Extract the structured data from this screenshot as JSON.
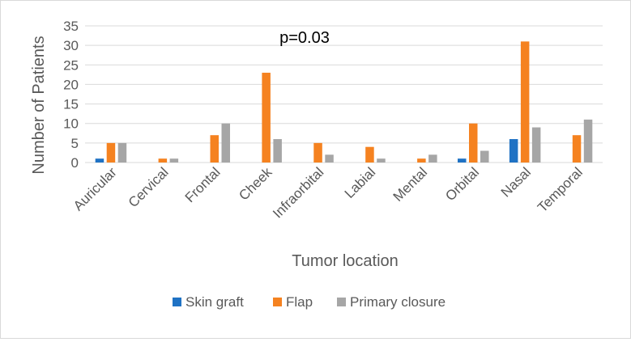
{
  "chart_data": {
    "type": "bar",
    "categories": [
      "Auricular",
      "Cervical",
      "Frontal",
      "Cheek",
      "Infraorbital",
      "Labial",
      "Mental",
      "Orbital",
      "Nasal",
      "Temporal"
    ],
    "series": [
      {
        "name": "Skin graft",
        "values": [
          1,
          0,
          0,
          0,
          0,
          0,
          0,
          1,
          6,
          0
        ]
      },
      {
        "name": "Flap",
        "values": [
          5,
          1,
          7,
          23,
          5,
          4,
          1,
          10,
          31,
          7
        ]
      },
      {
        "name": "Primary closure",
        "values": [
          5,
          1,
          10,
          6,
          2,
          1,
          2,
          3,
          9,
          11
        ]
      }
    ],
    "colors": [
      "#1f72c4",
      "#f58220",
      "#a6a6a6"
    ],
    "annotation": "p=0.03",
    "xlabel": "Tumor location",
    "ylabel": "Number of Patients",
    "ylim": [
      0,
      35
    ],
    "yticks": [
      0,
      5,
      10,
      15,
      20,
      25,
      30,
      35
    ],
    "grid": true,
    "legend": "bottom"
  }
}
